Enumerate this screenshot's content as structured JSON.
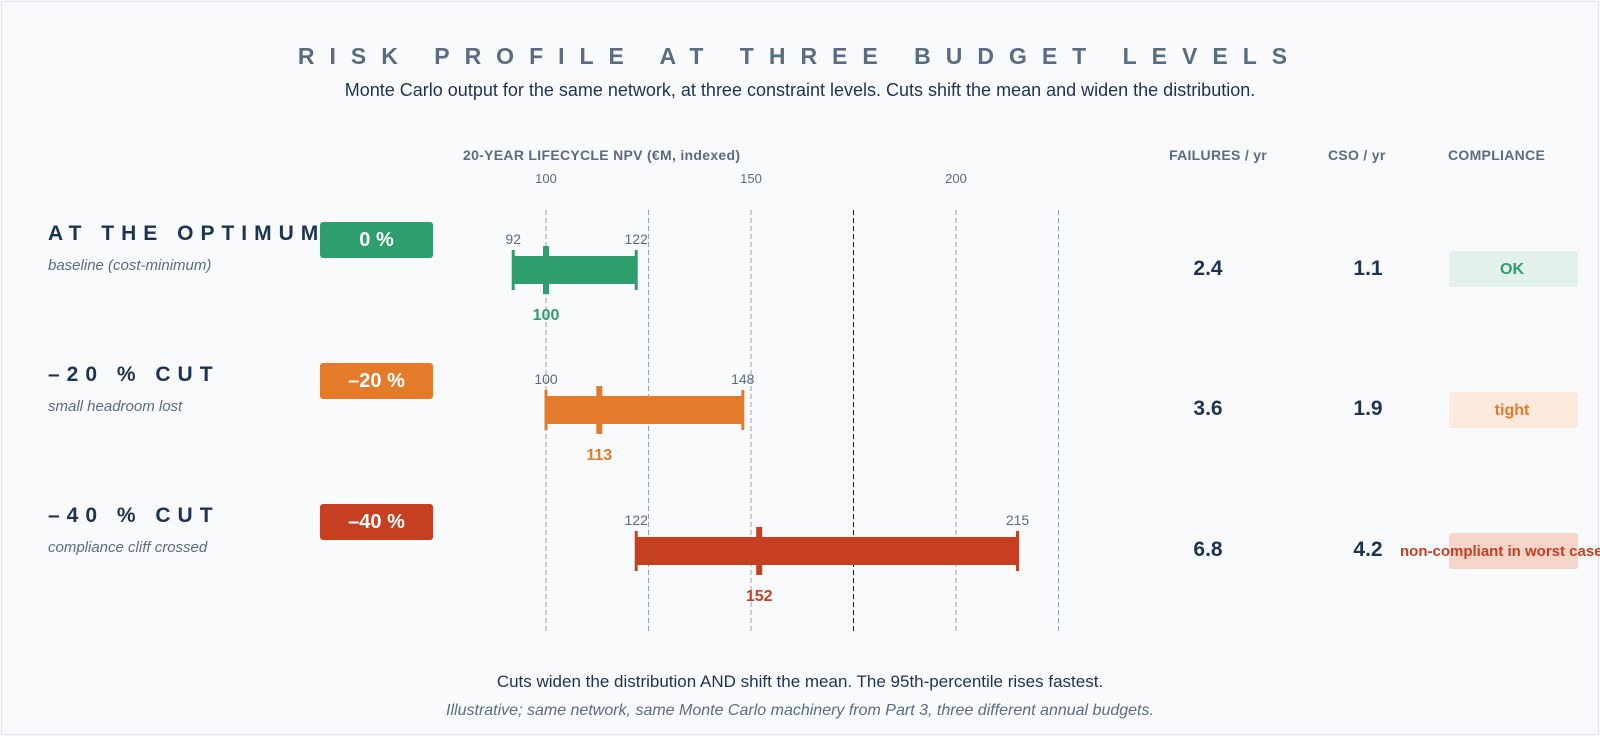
{
  "title": "RISK PROFILE AT THREE BUDGET LEVELS",
  "subtitle": "Monte Carlo output for the same network, at three constraint levels. Cuts shift the mean and widen the distribution.",
  "columns": {
    "npv": "20-YEAR LIFECYCLE NPV  (€M, indexed)",
    "failures": "FAILURES / yr",
    "cso": "CSO / yr",
    "compliance": "COMPLIANCE"
  },
  "rows": [
    {
      "label": "AT THE OPTIMUM",
      "sub": "baseline (cost-minimum)",
      "badge": "0 %",
      "color": "#2e9e6e",
      "failures": "2.4",
      "cso": "1.1",
      "compliance": "OK",
      "compliance_bg": "#e2f2ea",
      "compliance_color": "#2e9e6e"
    },
    {
      "label": "–20 % CUT",
      "sub": "small headroom lost",
      "badge": "–20 %",
      "color": "#e37b2b",
      "failures": "3.6",
      "cso": "1.9",
      "compliance": "tight",
      "compliance_bg": "#fbe9dc",
      "compliance_color": "#e37b2b"
    },
    {
      "label": "–40 % CUT",
      "sub": "compliance cliff crossed",
      "badge": "–40 %",
      "color": "#c63f20",
      "failures": "6.8",
      "cso": "4.2",
      "compliance": "non-compliant in worst case",
      "compliance_bg": "#f6d5cb",
      "compliance_color": "#c63f20"
    }
  ],
  "chart_data": {
    "type": "range-bar",
    "xlabel": "20-YEAR LIFECYCLE NPV  (€M, indexed)",
    "xlim": [
      75,
      200
    ],
    "ticks": [
      100,
      150,
      200
    ],
    "gridlines": [
      100,
      125,
      150,
      175,
      200,
      225
    ],
    "series": [
      {
        "name": "AT THE OPTIMUM",
        "low": 92,
        "high": 122,
        "mean": 100
      },
      {
        "name": "–20 % CUT",
        "low": 100,
        "high": 148,
        "mean": 113
      },
      {
        "name": "–40 % CUT",
        "low": 122,
        "high": 215,
        "mean": 152
      }
    ]
  },
  "footer": {
    "line1": "Cuts widen the distribution AND shift the mean. The 95th-percentile rises fastest.",
    "line2": "Illustrative; same network, same Monte Carlo machinery from Part 3, three different annual budgets."
  }
}
